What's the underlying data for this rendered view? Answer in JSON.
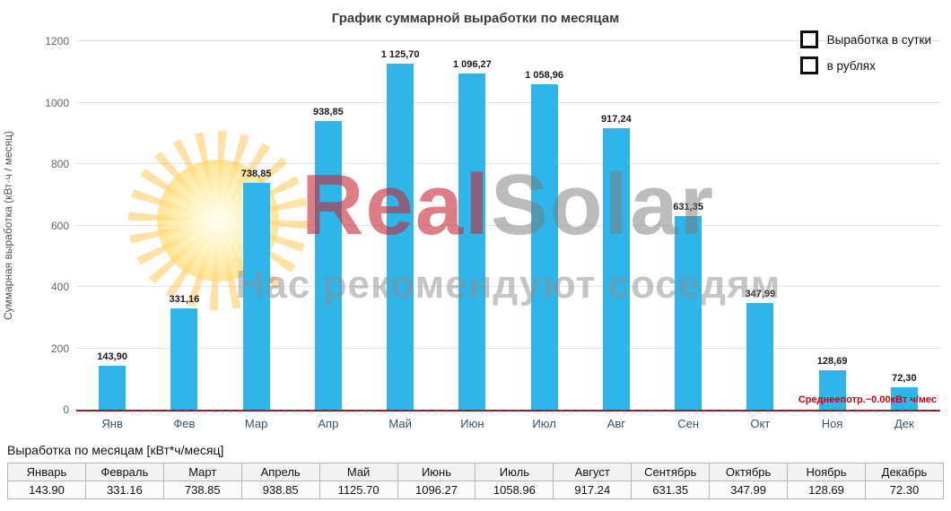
{
  "chart_data": {
    "type": "bar",
    "title": "График суммарной выработки по месяцам",
    "ylabel": "Суммарная выработка (кВт·ч / месяц)",
    "ylim": [
      0,
      1200
    ],
    "yticks": [
      0,
      200,
      400,
      600,
      800,
      1000,
      1200
    ],
    "categories": [
      "Янв",
      "Фев",
      "Мар",
      "Апр",
      "Май",
      "Июн",
      "Июл",
      "Авг",
      "Сен",
      "Окт",
      "Ноя",
      "Дек"
    ],
    "values": [
      143.9,
      331.16,
      738.85,
      938.85,
      1125.7,
      1096.27,
      1058.96,
      917.24,
      631.35,
      347.99,
      128.69,
      72.3
    ],
    "value_labels": [
      "143,90",
      "331,16",
      "738,85",
      "938,85",
      "1 125,70",
      "1 096,27",
      "1 058,96",
      "917,24",
      "631,35",
      "347,99",
      "128,69",
      "72,30"
    ],
    "grid": false,
    "legend_position": "top-right",
    "annotation": {
      "label": "Среднеепотр.~0.00кВт ч/мес",
      "y": 0,
      "color": "#cc0011",
      "style": "dashed"
    }
  },
  "legend": {
    "items": [
      {
        "label": "Выработка в сутки"
      },
      {
        "label": "в рублях"
      }
    ]
  },
  "watermark": {
    "brand_red": "Real",
    "brand_gray": "Solar",
    "tagline": "Нас рекомендуют соседям"
  },
  "table": {
    "caption": "Выработка по месяцам [кВт*ч/месяц]",
    "months": [
      "Январь",
      "Февраль",
      "Март",
      "Апрель",
      "Май",
      "Июнь",
      "Июль",
      "Август",
      "Сентябрь",
      "Октябрь",
      "Ноябрь",
      "Декабрь"
    ],
    "values": [
      "143.90",
      "331.16",
      "738.85",
      "938.85",
      "1125.70",
      "1096.27",
      "1058.96",
      "917.24",
      "631.35",
      "347.99",
      "128.69",
      "72.30"
    ]
  },
  "colors": {
    "bar": "#2eb6ea",
    "annotation_red": "#cc0011",
    "axis_text": "#666666"
  }
}
